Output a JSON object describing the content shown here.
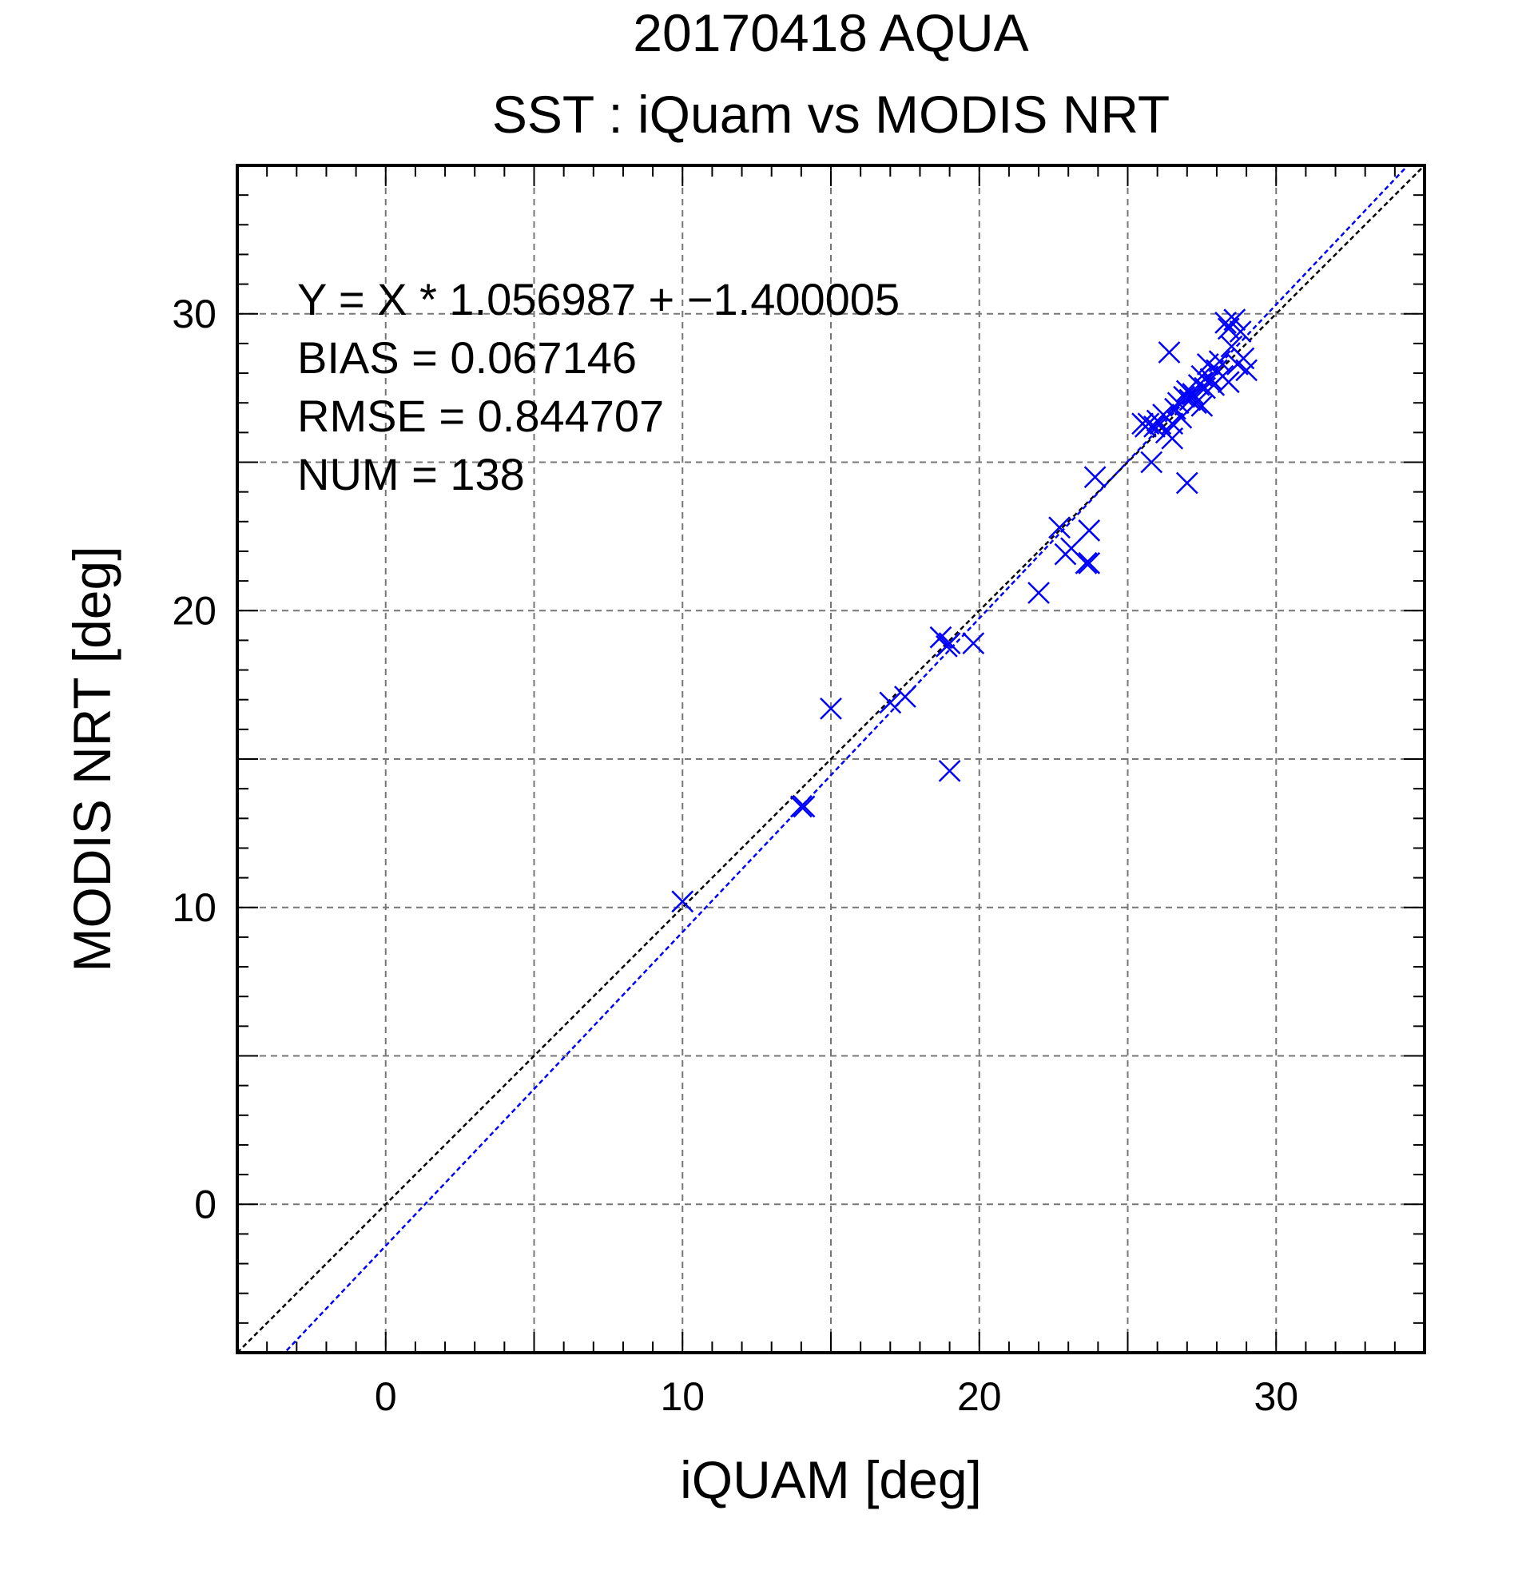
{
  "chart_data": {
    "type": "scatter",
    "title": "20170418 AQUA",
    "subtitle": "SST : iQuam vs MODIS NRT",
    "xlabel": "iQUAM [deg]",
    "ylabel": "MODIS NRT [deg]",
    "xlim": [
      -5,
      35
    ],
    "ylim": [
      -5,
      35
    ],
    "xticks": [
      0,
      10,
      20,
      30
    ],
    "yticks": [
      0,
      10,
      20,
      30
    ],
    "grid": true,
    "colors": {
      "points": "#0000ff",
      "fit_line": "#0000ff",
      "identity_line": "#000000",
      "grid": "#777777"
    },
    "stats": [
      "Y = X * 1.056987 + −1.400005",
      "BIAS = 0.067146",
      "RMSE = 0.844707",
      "NUM = 138"
    ],
    "fit": {
      "slope": 1.056987,
      "intercept": -1.400005
    },
    "series": [
      {
        "marker": "x",
        "points": [
          [
            10.0,
            10.2
          ],
          [
            14.0,
            13.4
          ],
          [
            14.1,
            13.4
          ],
          [
            15.0,
            16.7
          ],
          [
            17.0,
            16.9
          ],
          [
            17.5,
            17.1
          ],
          [
            18.7,
            19.1
          ],
          [
            18.9,
            18.8
          ],
          [
            19.0,
            18.9
          ],
          [
            19.0,
            14.6
          ],
          [
            19.8,
            18.9
          ],
          [
            22.0,
            20.6
          ],
          [
            22.7,
            22.8
          ],
          [
            22.9,
            21.9
          ],
          [
            23.1,
            22.1
          ],
          [
            23.6,
            21.6
          ],
          [
            23.7,
            21.6
          ],
          [
            23.7,
            22.7
          ],
          [
            23.9,
            24.5
          ],
          [
            25.5,
            26.3
          ],
          [
            25.6,
            26.2
          ],
          [
            25.7,
            26.3
          ],
          [
            25.8,
            25.0
          ],
          [
            25.9,
            26.2
          ],
          [
            26.0,
            26.4
          ],
          [
            26.1,
            26.3
          ],
          [
            26.2,
            26.6
          ],
          [
            26.3,
            26.0
          ],
          [
            26.4,
            28.7
          ],
          [
            26.5,
            26.3
          ],
          [
            26.5,
            25.8
          ],
          [
            26.6,
            26.8
          ],
          [
            26.7,
            27.0
          ],
          [
            26.8,
            26.5
          ],
          [
            26.9,
            27.2
          ],
          [
            27.0,
            24.3
          ],
          [
            27.0,
            27.4
          ],
          [
            27.1,
            27.1
          ],
          [
            27.2,
            27.3
          ],
          [
            27.3,
            27.0
          ],
          [
            27.4,
            27.6
          ],
          [
            27.5,
            27.9
          ],
          [
            27.5,
            26.9
          ],
          [
            27.6,
            27.5
          ],
          [
            27.7,
            28.3
          ],
          [
            27.8,
            27.8
          ],
          [
            27.9,
            27.6
          ],
          [
            28.0,
            28.1
          ],
          [
            28.1,
            28.4
          ],
          [
            28.2,
            27.9
          ],
          [
            28.3,
            29.7
          ],
          [
            28.4,
            29.5
          ],
          [
            28.4,
            27.7
          ],
          [
            28.5,
            28.9
          ],
          [
            28.6,
            29.8
          ],
          [
            28.7,
            28.3
          ],
          [
            28.8,
            29.4
          ],
          [
            28.9,
            28.5
          ],
          [
            29.0,
            28.1
          ]
        ]
      }
    ]
  }
}
